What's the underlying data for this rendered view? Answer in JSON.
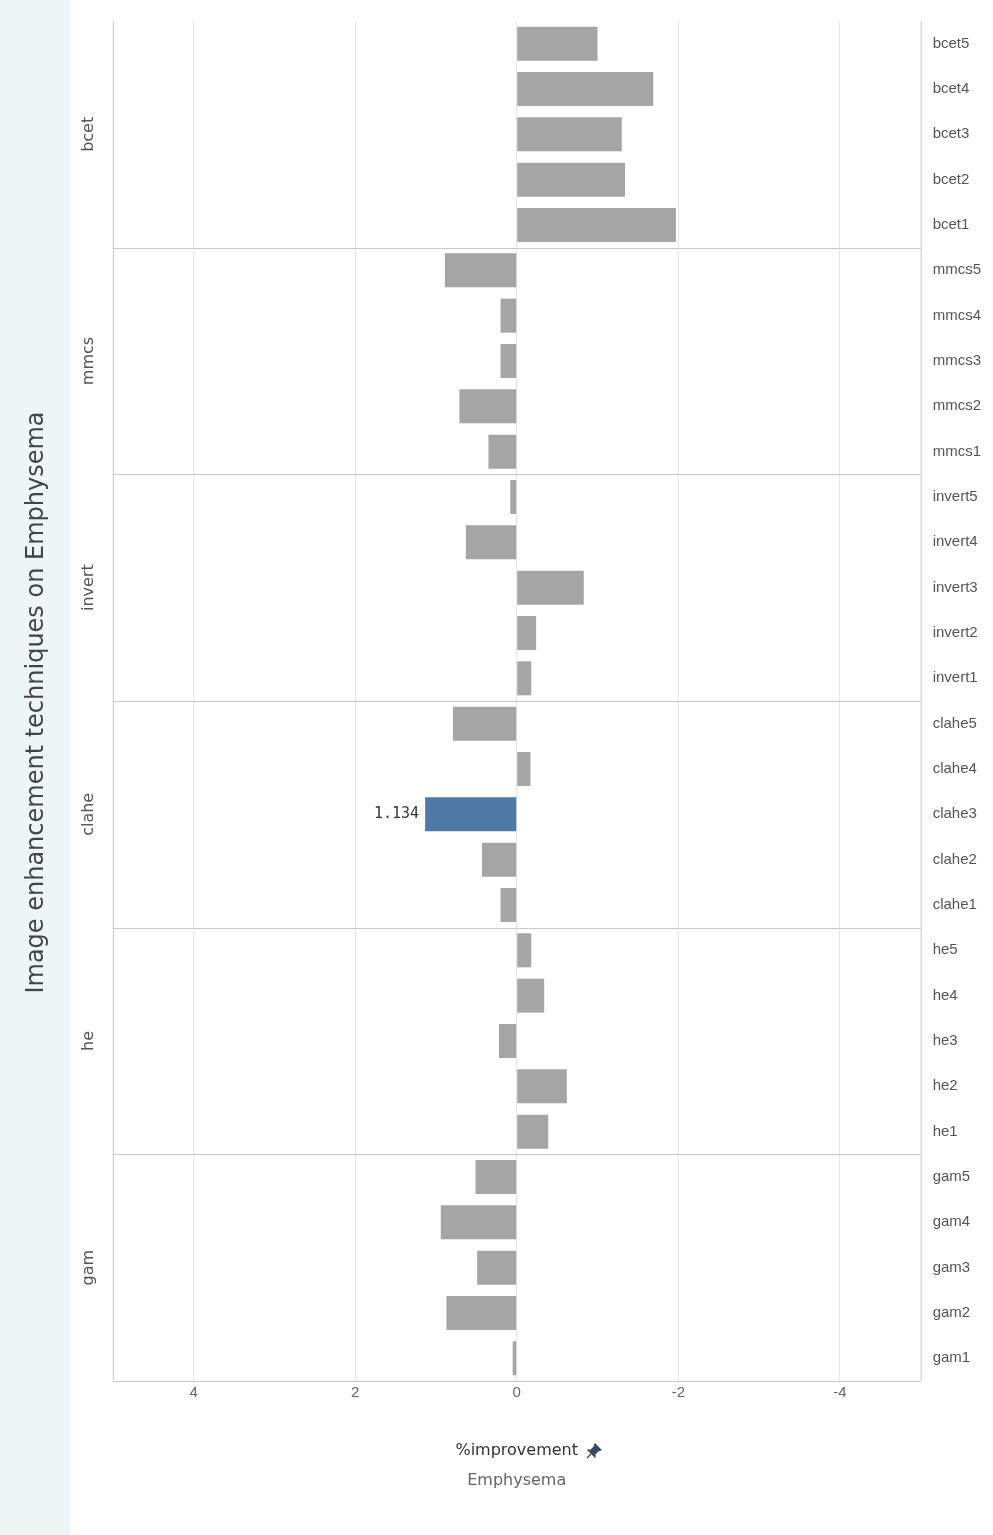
{
  "chart_data": {
    "type": "bar",
    "orientation": "horizontal",
    "title": "Image enhancement techniques on Emphysema",
    "xlabel": "%improvement",
    "categories": [
      "bcet5",
      "bcet4",
      "bcet3",
      "bcet2",
      "bcet1",
      "mmcs5",
      "mmcs4",
      "mmcs3",
      "mmcs2",
      "mmcs1",
      "invert5",
      "invert4",
      "invert3",
      "invert2",
      "invert1",
      "clahe5",
      "clahe4",
      "clahe3",
      "clahe2",
      "clahe1",
      "he5",
      "he4",
      "he3",
      "he2",
      "he1",
      "gam5",
      "gam4",
      "gam3",
      "gam2",
      "gam1"
    ],
    "values": [
      -1.0,
      -1.69,
      -1.3,
      -1.34,
      -1.97,
      0.89,
      0.2,
      0.2,
      0.71,
      0.35,
      0.08,
      0.63,
      -0.83,
      -0.24,
      -0.18,
      0.79,
      -0.17,
      1.134,
      0.43,
      0.2,
      -0.18,
      -0.34,
      0.22,
      -0.62,
      -0.39,
      0.51,
      0.94,
      0.49,
      0.87,
      0.05
    ],
    "colors": [
      "#a5a5a5",
      "#a5a5a5",
      "#a5a5a5",
      "#a5a5a5",
      "#a5a5a5",
      "#a5a5a5",
      "#a5a5a5",
      "#a5a5a5",
      "#a5a5a5",
      "#a5a5a5",
      "#a5a5a5",
      "#a5a5a5",
      "#a5a5a5",
      "#a5a5a5",
      "#a5a5a5",
      "#a5a5a5",
      "#a5a5a5",
      "#4e79a7",
      "#a5a5a5",
      "#a5a5a5",
      "#a5a5a5",
      "#a5a5a5",
      "#a5a5a5",
      "#a5a5a5",
      "#a5a5a5",
      "#a5a5a5",
      "#a5a5a5",
      "#a5a5a5",
      "#a5a5a5",
      "#a5a5a5"
    ],
    "value_labels": [
      null,
      null,
      null,
      null,
      null,
      null,
      null,
      null,
      null,
      null,
      null,
      null,
      null,
      null,
      null,
      null,
      null,
      "1.134",
      null,
      null,
      null,
      null,
      null,
      null,
      null,
      null,
      null,
      null,
      null,
      null
    ],
    "xlim": [
      5,
      -5
    ],
    "xticks": [
      4,
      2,
      0,
      -2,
      -4
    ],
    "grid": "x",
    "annotations": [
      "bcet",
      "mmcs",
      "invert",
      "clahe",
      "he",
      "gam",
      "Emphysema"
    ]
  }
}
